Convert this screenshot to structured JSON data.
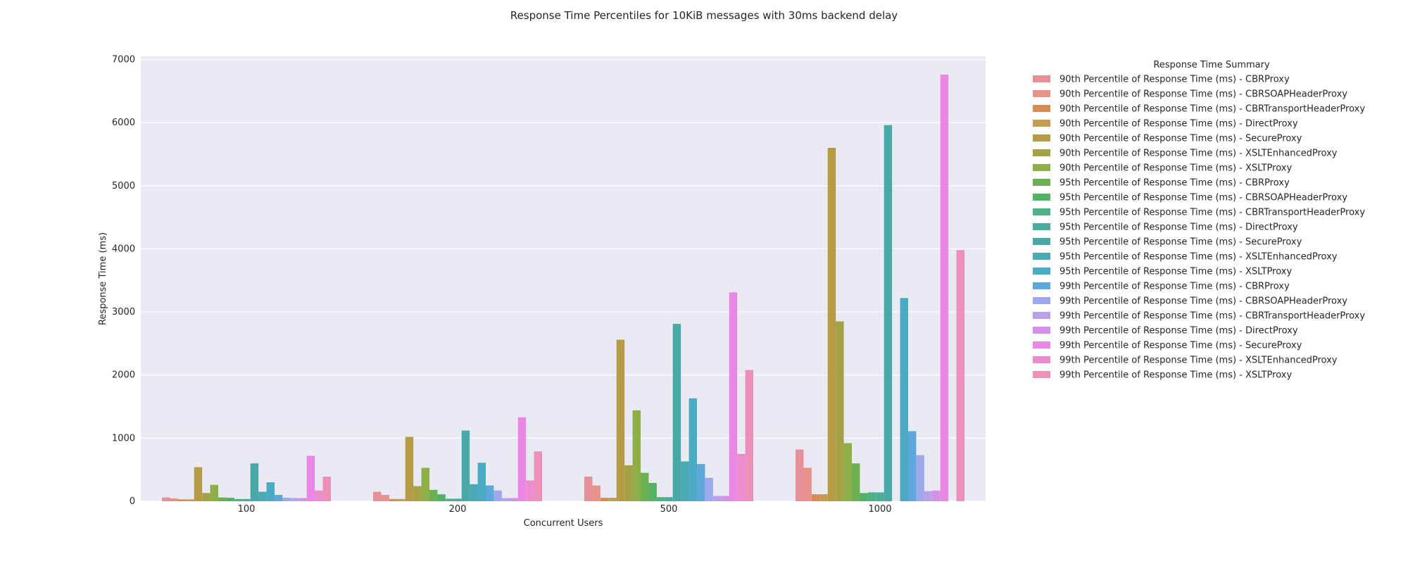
{
  "chart_data": {
    "type": "bar",
    "title": "Response Time Percentiles for 10KiB messages with 30ms backend delay",
    "xlabel": "Concurrent Users",
    "ylabel": "Response Time (ms)",
    "categories": [
      "100",
      "200",
      "500",
      "1000"
    ],
    "ylim": [
      0,
      7050
    ],
    "yticks": [
      0,
      1000,
      2000,
      3000,
      4000,
      5000,
      6000,
      7000
    ],
    "grid": true,
    "legend_title": "Response Time Summary",
    "legend_position": "outside-right",
    "series": [
      {
        "name": "90th Percentile of Response Time (ms) - CBRProxy",
        "color": "#e8909a",
        "values": [
          60,
          150,
          390,
          820
        ]
      },
      {
        "name": "90th Percentile of Response Time (ms) - CBRSOAPHeaderProxy",
        "color": "#e8938a",
        "values": [
          45,
          100,
          250,
          530
        ]
      },
      {
        "name": "90th Percentile of Response Time (ms) - CBRTransportHeaderProxy",
        "color": "#d78c52",
        "values": [
          30,
          35,
          55,
          110
        ]
      },
      {
        "name": "90th Percentile of Response Time (ms) - DirectProxy",
        "color": "#c69a4f",
        "values": [
          30,
          35,
          55,
          110
        ]
      },
      {
        "name": "90th Percentile of Response Time (ms) - SecureProxy",
        "color": "#b69b47",
        "values": [
          540,
          1020,
          2560,
          5600
        ]
      },
      {
        "name": "90th Percentile of Response Time (ms) - XSLTEnhancedProxy",
        "color": "#a4a244",
        "values": [
          130,
          240,
          570,
          2850
        ]
      },
      {
        "name": "90th Percentile of Response Time (ms) - XSLTProxy",
        "color": "#8eae4a",
        "values": [
          260,
          530,
          1440,
          920
        ]
      },
      {
        "name": "95th Percentile of Response Time (ms) - CBRProxy",
        "color": "#6db050",
        "values": [
          60,
          180,
          450,
          600
        ]
      },
      {
        "name": "95th Percentile of Response Time (ms) - CBRSOAPHeaderProxy",
        "color": "#52b364",
        "values": [
          55,
          110,
          290,
          130
        ]
      },
      {
        "name": "95th Percentile of Response Time (ms) - CBRTransportHeaderProxy",
        "color": "#4db387",
        "values": [
          35,
          40,
          65,
          140
        ]
      },
      {
        "name": "95th Percentile of Response Time (ms) - DirectProxy",
        "color": "#4aad9a",
        "values": [
          35,
          40,
          65,
          140
        ]
      },
      {
        "name": "95th Percentile of Response Time (ms) - SecureProxy",
        "color": "#49a9a6",
        "values": [
          600,
          1120,
          2810,
          5960
        ]
      },
      {
        "name": "95th Percentile of Response Time (ms) - XSLTEnhancedProxy",
        "color": "#4aaab4",
        "values": [
          150,
          270,
          630,
          0
        ]
      },
      {
        "name": "95th Percentile of Response Time (ms) - XSLTProxy",
        "color": "#4babc4",
        "values": [
          300,
          610,
          1630,
          3220
        ]
      },
      {
        "name": "99th Percentile of Response Time (ms) - CBRProxy",
        "color": "#5fa8de",
        "values": [
          100,
          250,
          590,
          1110
        ]
      },
      {
        "name": "99th Percentile of Response Time (ms) - CBRSOAPHeaderProxy",
        "color": "#9ea9ec",
        "values": [
          55,
          170,
          370,
          730
        ]
      },
      {
        "name": "99th Percentile of Response Time (ms) - CBRTransportHeaderProxy",
        "color": "#b8a0ea",
        "values": [
          50,
          50,
          85,
          160
        ]
      },
      {
        "name": "99th Percentile of Response Time (ms) - DirectProxy",
        "color": "#d391e6",
        "values": [
          50,
          50,
          85,
          170
        ]
      },
      {
        "name": "99th Percentile of Response Time (ms) - SecureProxy",
        "color": "#e888e4",
        "values": [
          720,
          1330,
          3310,
          6760
        ]
      },
      {
        "name": "99th Percentile of Response Time (ms) - XSLTEnhancedProxy",
        "color": "#ec8ccf",
        "values": [
          170,
          330,
          750,
          0
        ]
      },
      {
        "name": "99th Percentile of Response Time (ms) - XSLTProxy",
        "color": "#ec90b8",
        "values": [
          390,
          790,
          2080,
          3980
        ]
      }
    ]
  }
}
